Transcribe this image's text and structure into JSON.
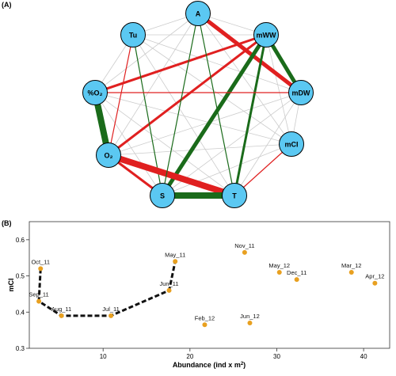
{
  "panel_a": {
    "label": "(A)"
  },
  "panel_b": {
    "label": "(B)"
  },
  "chart_data": [
    {
      "type": "network",
      "nodes": [
        {
          "id": "A",
          "label": "A"
        },
        {
          "id": "mWW",
          "label": "mWW"
        },
        {
          "id": "mDW",
          "label": "mDW"
        },
        {
          "id": "mCI",
          "label": "mCI"
        },
        {
          "id": "T",
          "label": "T"
        },
        {
          "id": "S",
          "label": "S"
        },
        {
          "id": "O2",
          "label": "O₂"
        },
        {
          "id": "pO2",
          "label": "%O₂"
        },
        {
          "id": "Tu",
          "label": "Tu"
        }
      ],
      "edge_colors": {
        "positive": "#1a6b1a",
        "negative": "#e02020",
        "weak": "#cccccc"
      },
      "edges": [
        {
          "from": "A",
          "to": "mDW",
          "sign": "negative",
          "strength": 3
        },
        {
          "from": "mWW",
          "to": "mDW",
          "sign": "positive",
          "strength": 3
        },
        {
          "from": "mWW",
          "to": "pO2",
          "sign": "negative",
          "strength": 2
        },
        {
          "from": "mWW",
          "to": "O2",
          "sign": "negative",
          "strength": 2
        },
        {
          "from": "mWW",
          "to": "S",
          "sign": "positive",
          "strength": 3
        },
        {
          "from": "mWW",
          "to": "T",
          "sign": "positive",
          "strength": 2
        },
        {
          "from": "Tu",
          "to": "O2",
          "sign": "negative",
          "strength": 1
        },
        {
          "from": "Tu",
          "to": "S",
          "sign": "positive",
          "strength": 1
        },
        {
          "from": "pO2",
          "to": "O2",
          "sign": "positive",
          "strength": 4
        },
        {
          "from": "pO2",
          "to": "mDW",
          "sign": "negative",
          "strength": 1
        },
        {
          "from": "O2",
          "to": "T",
          "sign": "negative",
          "strength": 4
        },
        {
          "from": "O2",
          "to": "S",
          "sign": "negative",
          "strength": 2
        },
        {
          "from": "S",
          "to": "T",
          "sign": "positive",
          "strength": 4
        },
        {
          "from": "T",
          "to": "mCI",
          "sign": "negative",
          "strength": 1
        },
        {
          "from": "A",
          "to": "T",
          "sign": "positive",
          "strength": 1
        },
        {
          "from": "A",
          "to": "S",
          "sign": "positive",
          "strength": 1
        },
        {
          "from": "A",
          "to": "Tu",
          "sign": "weak",
          "strength": 1
        },
        {
          "from": "A",
          "to": "mWW",
          "sign": "weak",
          "strength": 1
        },
        {
          "from": "A",
          "to": "mCI",
          "sign": "weak",
          "strength": 1
        },
        {
          "from": "A",
          "to": "pO2",
          "sign": "weak",
          "strength": 1
        },
        {
          "from": "A",
          "to": "O2",
          "sign": "weak",
          "strength": 1
        },
        {
          "from": "Tu",
          "to": "mWW",
          "sign": "weak",
          "strength": 1
        },
        {
          "from": "Tu",
          "to": "mDW",
          "sign": "weak",
          "strength": 1
        },
        {
          "from": "Tu",
          "to": "mCI",
          "sign": "weak",
          "strength": 1
        },
        {
          "from": "Tu",
          "to": "T",
          "sign": "weak",
          "strength": 1
        },
        {
          "from": "Tu",
          "to": "pO2",
          "sign": "weak",
          "strength": 1
        },
        {
          "from": "pO2",
          "to": "mCI",
          "sign": "weak",
          "strength": 1
        },
        {
          "from": "pO2",
          "to": "S",
          "sign": "weak",
          "strength": 1
        },
        {
          "from": "pO2",
          "to": "T",
          "sign": "weak",
          "strength": 1
        },
        {
          "from": "mDW",
          "to": "S",
          "sign": "weak",
          "strength": 1
        },
        {
          "from": "mDW",
          "to": "T",
          "sign": "weak",
          "strength": 1
        },
        {
          "from": "mDW",
          "to": "O2",
          "sign": "weak",
          "strength": 1
        },
        {
          "from": "mDW",
          "to": "mCI",
          "sign": "weak",
          "strength": 1
        },
        {
          "from": "mWW",
          "to": "mCI",
          "sign": "weak",
          "strength": 1
        },
        {
          "from": "mCI",
          "to": "S",
          "sign": "weak",
          "strength": 1
        },
        {
          "from": "mCI",
          "to": "O2",
          "sign": "weak",
          "strength": 1
        }
      ],
      "node_fill": "#5bc8f2"
    },
    {
      "type": "scatter",
      "xlabel": "Abundance (ind x m",
      "xlabel_sup": "2",
      "xlabel_close": ")",
      "ylabel": "mCI",
      "xlim": [
        1.5,
        43
      ],
      "ylim": [
        0.3,
        0.65
      ],
      "xticks": [
        10,
        20,
        30,
        40
      ],
      "yticks": [
        0.3,
        0.4,
        0.5,
        0.6
      ],
      "ytick_labels": [
        "0.3",
        "0.4",
        "0.5",
        "0.6"
      ],
      "point_color": "#e8a020",
      "points": [
        {
          "label": "Oct_11",
          "x": 2.8,
          "y": 0.52
        },
        {
          "label": "Sep_11",
          "x": 2.6,
          "y": 0.43
        },
        {
          "label": "Aug_11",
          "x": 5.2,
          "y": 0.39
        },
        {
          "label": "Jul_11",
          "x": 10.9,
          "y": 0.39
        },
        {
          "label": "Jun_11",
          "x": 17.6,
          "y": 0.46
        },
        {
          "label": "May_11",
          "x": 18.3,
          "y": 0.54
        },
        {
          "label": "Nov_11",
          "x": 26.3,
          "y": 0.565
        },
        {
          "label": "May_12",
          "x": 30.3,
          "y": 0.51
        },
        {
          "label": "Dec_11",
          "x": 32.3,
          "y": 0.49
        },
        {
          "label": "Mar_12",
          "x": 38.6,
          "y": 0.51
        },
        {
          "label": "Apr_12",
          "x": 41.3,
          "y": 0.48
        },
        {
          "label": "Feb_12",
          "x": 21.7,
          "y": 0.365
        },
        {
          "label": "Jun_12",
          "x": 26.9,
          "y": 0.37
        }
      ],
      "trajectory": [
        "Oct_11",
        "Sep_11",
        "Aug_11",
        "Jul_11",
        "Jun_11",
        "May_11"
      ]
    }
  ]
}
